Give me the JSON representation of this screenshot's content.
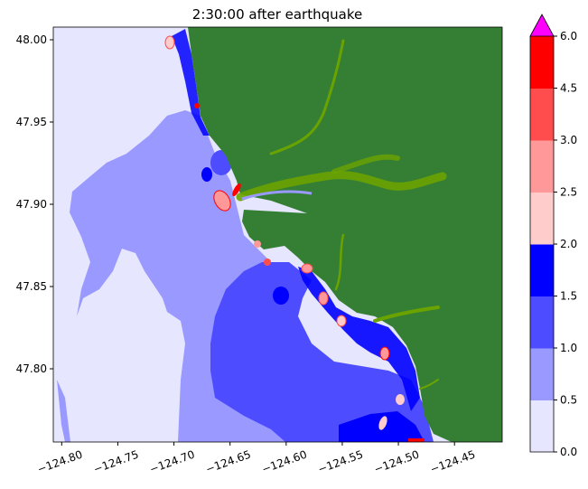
{
  "chart_data": {
    "type": "heatmap",
    "title": "2:30:00 after earthquake",
    "xlabel": "",
    "ylabel": "",
    "xlim": [
      -124.8075,
      -124.4075
    ],
    "ylim": [
      47.7555,
      48.0077
    ],
    "xticks": [
      -124.8,
      -124.75,
      -124.7,
      -124.65,
      -124.6,
      -124.55,
      -124.5,
      -124.45
    ],
    "xtick_labels": [
      "−124.80",
      "−124.75",
      "−124.70",
      "−124.65",
      "−124.60",
      "−124.55",
      "−124.50",
      "−124.45"
    ],
    "yticks": [
      48.0,
      47.95,
      47.9,
      47.85,
      47.8
    ],
    "ytick_labels": [
      "48.00",
      "47.95",
      "47.90",
      "47.85",
      "47.80"
    ],
    "colorbar": {
      "levels": [
        0.0,
        0.5,
        1.0,
        1.5,
        2.0,
        2.5,
        3.0,
        4.5,
        6.0
      ],
      "tick_labels": [
        "0.0",
        "0.5",
        "1.0",
        "1.5",
        "2.0",
        "2.5",
        "3.0",
        "4.5",
        "6.0"
      ],
      "colors": [
        "#e6e6ff",
        "#9999ff",
        "#4d4dff",
        "#0000ff",
        "#ffcccc",
        "#ff9999",
        "#ff4d4d",
        "#ff0000"
      ],
      "extend_max_color": "#ff00ff"
    },
    "land_color": "#357f35",
    "wet_land_color": "#6aa300",
    "grid": false
  }
}
